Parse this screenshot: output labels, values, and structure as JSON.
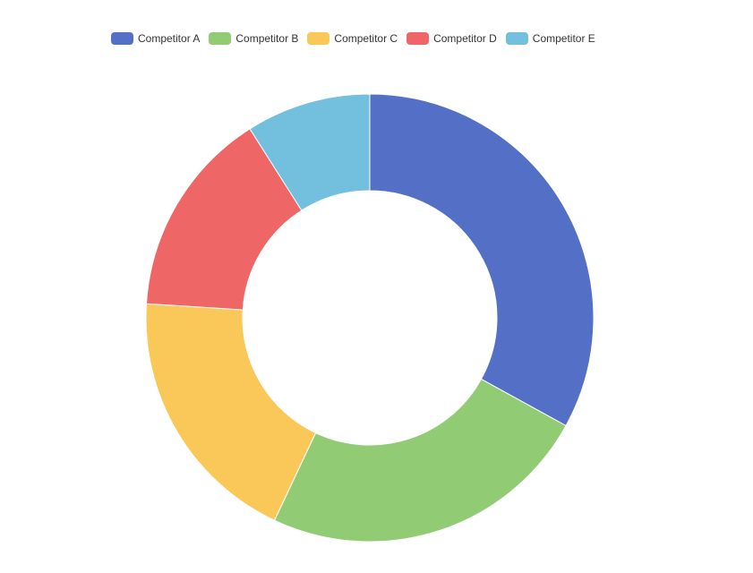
{
  "chart_data": {
    "type": "pie",
    "variant": "donut",
    "categories": [
      "Competitor A",
      "Competitor B",
      "Competitor C",
      "Competitor D",
      "Competitor E"
    ],
    "values": [
      33,
      24,
      19,
      15,
      9
    ],
    "colors": [
      "#5470c6",
      "#91cc75",
      "#fac858",
      "#ee6666",
      "#73c0de"
    ],
    "title": "",
    "legend_position": "top-center",
    "start_angle": "12 o'clock, clockwise"
  }
}
